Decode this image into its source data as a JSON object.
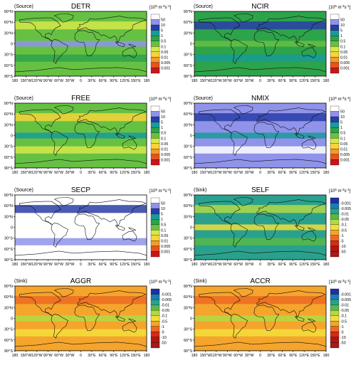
{
  "chart_data": [
    {
      "type": "heatmap",
      "tag": "(Source)",
      "title": "DETR",
      "scale": "source",
      "longitude_labels_shown": false,
      "dominant_levels": [
        "0.5",
        "0.1",
        "1",
        "0.005"
      ]
    },
    {
      "type": "heatmap",
      "tag": "(Source)",
      "title": "NCIR",
      "scale": "source",
      "longitude_labels_shown": false,
      "dominant_levels": [
        "0.1",
        "0.05",
        "0.01",
        "0.5"
      ]
    },
    {
      "type": "heatmap",
      "tag": "(Source)",
      "title": "FREE",
      "scale": "source",
      "longitude_labels_shown": false,
      "dominant_levels": [
        "0.5",
        "1",
        "5",
        "0.05"
      ]
    },
    {
      "type": "heatmap",
      "tag": "(Source)",
      "title": "NMIX",
      "scale": "source",
      "longitude_labels_shown": false,
      "dominant_levels": [
        "0.005",
        "0.001",
        "0.01",
        "0.05"
      ]
    },
    {
      "type": "heatmap",
      "tag": "(Source)",
      "title": "SECP",
      "scale": "source",
      "longitude_labels_shown": false,
      "dominant_levels": [
        "0.001",
        "0.005",
        "0.01"
      ]
    },
    {
      "type": "heatmap",
      "tag": "(Sink)",
      "title": "SELF",
      "scale": "sink",
      "longitude_labels_shown": false,
      "dominant_levels": [
        "-0.01",
        "-0.05",
        "-0.1",
        "-0.5"
      ]
    },
    {
      "type": "heatmap",
      "tag": "(Sink)",
      "title": "AGGR",
      "scale": "sink",
      "longitude_labels_shown": true,
      "dominant_levels": [
        "-1",
        "-0.5",
        "-5",
        "-0.1"
      ]
    },
    {
      "type": "heatmap",
      "tag": "(Sink)",
      "title": "ACCR",
      "scale": "sink",
      "longitude_labels_shown": true,
      "dominant_levels": [
        "-1",
        "-0.5",
        "-5",
        "-0.1"
      ]
    }
  ],
  "axes": {
    "lat_labels": [
      "90°N",
      "60°N",
      "30°N",
      "0",
      "30°S",
      "60°S",
      "90°S"
    ],
    "lon_labels": [
      "180",
      "150°W",
      "120°W",
      "90°W",
      "60°W",
      "30°W",
      "0",
      "30°E",
      "60°E",
      "90°E",
      "120°E",
      "150°E",
      "180"
    ]
  },
  "colorbar": {
    "unit": "[10",
    "unit_exp": "5",
    "unit_rest": " m",
    "unit_exp2": "-3",
    "unit_rest2": "s",
    "unit_exp3": "-1",
    "unit_close": "]",
    "source_levels": [
      "50",
      "10",
      "5",
      "1",
      "0.5",
      "0.1",
      "0.05",
      "0.01",
      "0.005",
      "0.001"
    ],
    "sink_levels": [
      "-0.001",
      "-0.005",
      "-0.01",
      "-0.05",
      "-0.1",
      "-0.5",
      "-1",
      "-5",
      "-10",
      "-50"
    ],
    "source_colors": [
      "#c9151a",
      "#e8531c",
      "#f59a2c",
      "#f7d43a",
      "#d7e84a",
      "#66c142",
      "#2da34a",
      "#189b9a",
      "#2a3da8",
      "#8f93ea",
      "#ffffff"
    ],
    "sink_colors": [
      "#1f2fa6",
      "#1a7fb0",
      "#2aa18d",
      "#57b848",
      "#b3d945",
      "#f2de3a",
      "#f5a52c",
      "#ec6a21",
      "#d62b16",
      "#b51412",
      "#a51a1a"
    ]
  }
}
